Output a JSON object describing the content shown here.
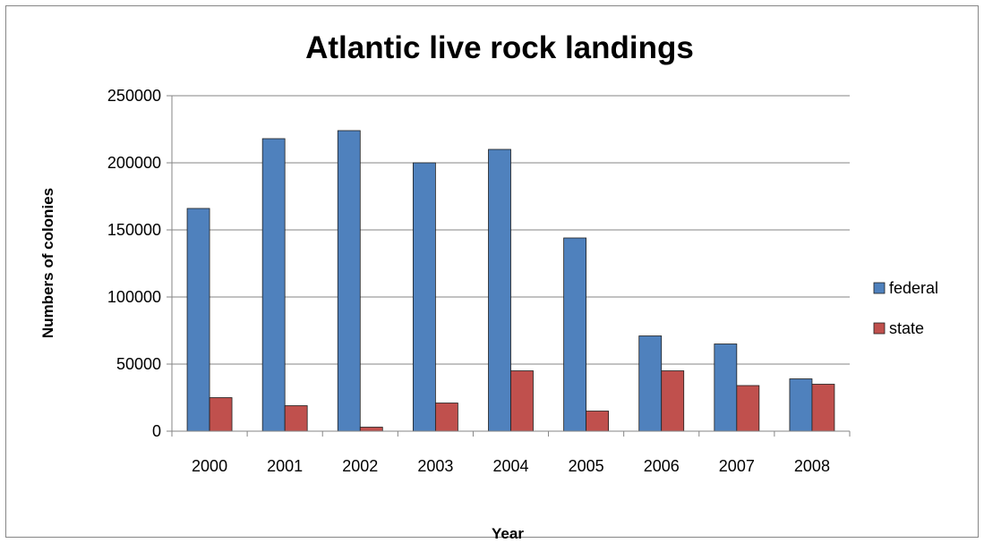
{
  "chart_data": {
    "type": "bar",
    "title": "Atlantic live rock landings",
    "xlabel": "Year",
    "ylabel": "Numbers of colonies",
    "categories": [
      "2000",
      "2001",
      "2002",
      "2003",
      "2004",
      "2005",
      "2006",
      "2007",
      "2008"
    ],
    "series": [
      {
        "name": "federal",
        "color": "#4F81BD",
        "values": [
          166000,
          218000,
          224000,
          200000,
          210000,
          144000,
          71000,
          65000,
          39000
        ]
      },
      {
        "name": "state",
        "color": "#C0504D",
        "values": [
          25000,
          19000,
          3000,
          21000,
          45000,
          15000,
          45000,
          34000,
          35000
        ]
      }
    ],
    "ylim": [
      0,
      250000
    ],
    "yticks": [
      "0",
      "50000",
      "100000",
      "150000",
      "200000",
      "250000"
    ],
    "grid": true,
    "legend_position": "right"
  }
}
